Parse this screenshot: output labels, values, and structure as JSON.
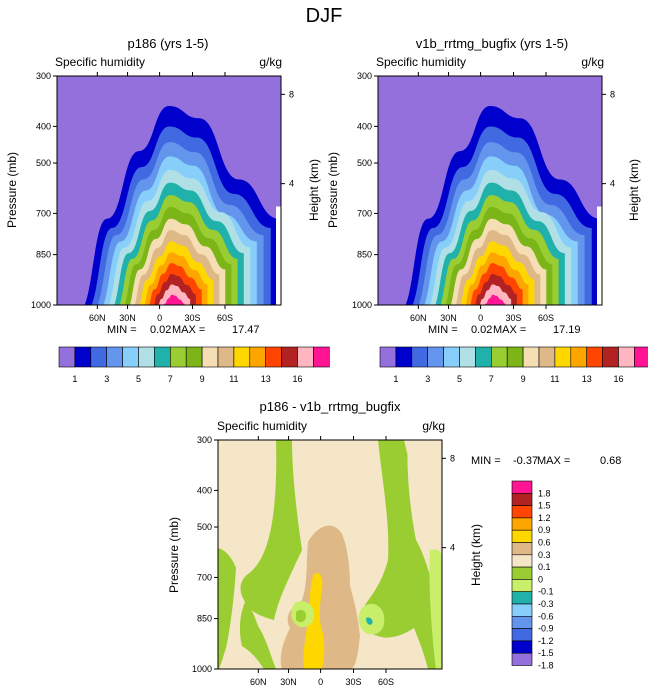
{
  "page_title": "DJF",
  "chart_data": [
    {
      "type": "contour",
      "title": "p186 (yrs 1-5)",
      "left_label": "Specific humidity",
      "right_label": "g/kg",
      "ylabel": "Pressure (mb)",
      "y2label": "Height (km)",
      "pressure_ticks": [
        "300",
        "400",
        "500",
        "700",
        "850",
        "1000"
      ],
      "height_ticks": [
        "8",
        "4"
      ],
      "lat_ticks": [
        "60N",
        "30N",
        "0",
        "30S",
        "60S"
      ],
      "min_label": "MIN =",
      "min_value": "0.02",
      "max_label": "MAX =",
      "max_value": "17.47",
      "colorbar_labels": [
        "1",
        "3",
        "5",
        "7",
        "9",
        "11",
        "13",
        "16"
      ]
    },
    {
      "type": "contour",
      "title": "v1b_rrtmg_bugfix (yrs 1-5)",
      "left_label": "Specific humidity",
      "right_label": "g/kg",
      "ylabel": "Pressure (mb)",
      "y2label": "Height (km)",
      "pressure_ticks": [
        "300",
        "400",
        "500",
        "700",
        "850",
        "1000"
      ],
      "height_ticks": [
        "8",
        "4"
      ],
      "lat_ticks": [
        "60N",
        "30N",
        "0",
        "30S",
        "60S"
      ],
      "min_label": "MIN =",
      "min_value": "0.02",
      "max_label": "MAX =",
      "max_value": "17.19",
      "colorbar_labels": [
        "1",
        "3",
        "5",
        "7",
        "9",
        "11",
        "13",
        "16"
      ]
    },
    {
      "type": "contour",
      "title": "p186 - v1b_rrtmg_bugfix",
      "left_label": "Specific humidity",
      "right_label": "g/kg",
      "ylabel": "Pressure (mb)",
      "y2label": "Height (km)",
      "pressure_ticks": [
        "300",
        "400",
        "500",
        "700",
        "850",
        "1000"
      ],
      "height_ticks": [
        "8",
        "4"
      ],
      "lat_ticks": [
        "60N",
        "30N",
        "0",
        "30S",
        "60S"
      ],
      "min_label": "MIN =",
      "min_value": "-0.37",
      "max_label": "MAX =",
      "max_value": "0.68",
      "colorbar_labels": [
        "1.8",
        "1.5",
        "1.2",
        "0.9",
        "0.6",
        "0.3",
        "0.1",
        "0",
        "-0.1",
        "-0.3",
        "-0.6",
        "-0.9",
        "-1.2",
        "-1.5",
        "-1.8"
      ]
    }
  ],
  "colors": {
    "abs_levels": [
      "#9370db",
      "#0000cd",
      "#4169e1",
      "#6495ed",
      "#87cefa",
      "#b0e0e6",
      "#20b2aa",
      "#9acd32",
      "#7cb518",
      "#f5deb3",
      "#deb887",
      "#ffd700",
      "#ffa500",
      "#ff4500",
      "#b22222",
      "#ffb6c1",
      "#ff1493"
    ],
    "diff_levels": [
      "#ff1493",
      "#b22222",
      "#ff4500",
      "#ffa500",
      "#ffd700",
      "#deb887",
      "#f5e6c8",
      "#9acd32",
      "#c8ee6a",
      "#20b2aa",
      "#87cefa",
      "#6495ed",
      "#4169e1",
      "#0000cd",
      "#9370db"
    ]
  }
}
